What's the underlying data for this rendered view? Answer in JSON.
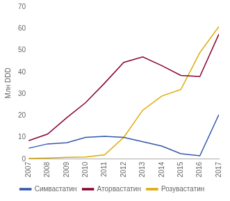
{
  "chart_data": {
    "type": "line",
    "x": [
      2007,
      2008,
      2009,
      2010,
      2011,
      2012,
      2013,
      2014,
      2015,
      2016,
      2017
    ],
    "series": [
      {
        "name": "Симвастатин",
        "color": "#3355aa",
        "values": [
          5.0,
          7.0,
          7.5,
          10.0,
          10.5,
          10.0,
          8.0,
          6.0,
          2.5,
          1.5,
          20.5
        ]
      },
      {
        "name": "Аторвастатин",
        "color": "#880033",
        "values": [
          8.5,
          11.5,
          19.0,
          26.0,
          35.0,
          44.5,
          47.0,
          43.0,
          38.5,
          38.0,
          57.5
        ]
      },
      {
        "name": "Розувастатин",
        "color": "#ddaa00",
        "values": [
          0.3,
          0.5,
          0.8,
          1.0,
          2.0,
          10.0,
          22.5,
          29.0,
          32.0,
          49.0,
          61.0
        ]
      }
    ],
    "ylabel": "Млн DDD",
    "xlim": [
      2007,
      2017
    ],
    "xticks": [
      2007,
      2008,
      2009,
      2010,
      2011,
      2012,
      2013,
      2014,
      2015,
      2016,
      2017
    ],
    "ylim": [
      0,
      70
    ],
    "yticks": [
      0,
      10,
      20,
      30,
      40,
      50,
      60,
      70
    ],
    "grid": false,
    "legend": "bottom"
  }
}
